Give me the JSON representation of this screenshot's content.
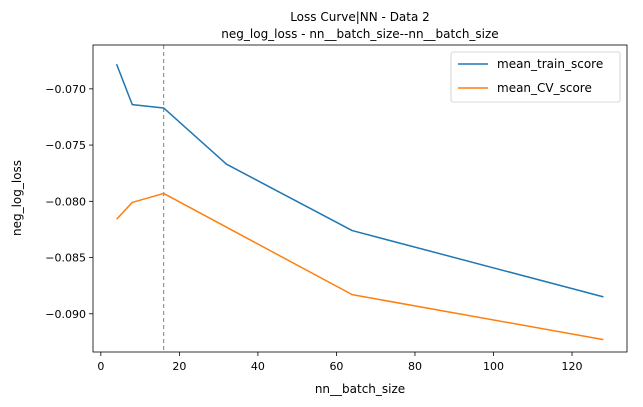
{
  "chart_data": {
    "type": "line",
    "title_line1": "Loss Curve|NN - Data 2",
    "title_line2": "neg_log_loss - nn__batch_size--nn__batch_size",
    "xlabel": "nn__batch_size",
    "ylabel": "neg_log_loss",
    "xlim": [
      -2,
      134
    ],
    "ylim": [
      -0.0934,
      -0.0661
    ],
    "xticks": [
      0,
      20,
      40,
      60,
      80,
      100,
      120
    ],
    "yticks": [
      -0.07,
      -0.075,
      -0.08,
      -0.085,
      -0.09
    ],
    "xtick_labels": [
      "0",
      "20",
      "40",
      "60",
      "80",
      "100",
      "120"
    ],
    "ytick_labels": [
      "−0.070",
      "−0.075",
      "−0.080",
      "−0.085",
      "−0.090"
    ],
    "vline_x": 16,
    "grid": false,
    "legend_position": "top-right",
    "series": [
      {
        "name": "mean_train_score",
        "color": "#1f77b4",
        "x": [
          4,
          8,
          16,
          32,
          64,
          128
        ],
        "values": [
          -0.0678,
          -0.0714,
          -0.0717,
          -0.0767,
          -0.0826,
          -0.0885
        ]
      },
      {
        "name": "mean_CV_score",
        "color": "#ff7f0e",
        "x": [
          4,
          8,
          16,
          32,
          64,
          128
        ],
        "values": [
          -0.0816,
          -0.0801,
          -0.0793,
          -0.0823,
          -0.0883,
          -0.0923
        ]
      }
    ]
  }
}
